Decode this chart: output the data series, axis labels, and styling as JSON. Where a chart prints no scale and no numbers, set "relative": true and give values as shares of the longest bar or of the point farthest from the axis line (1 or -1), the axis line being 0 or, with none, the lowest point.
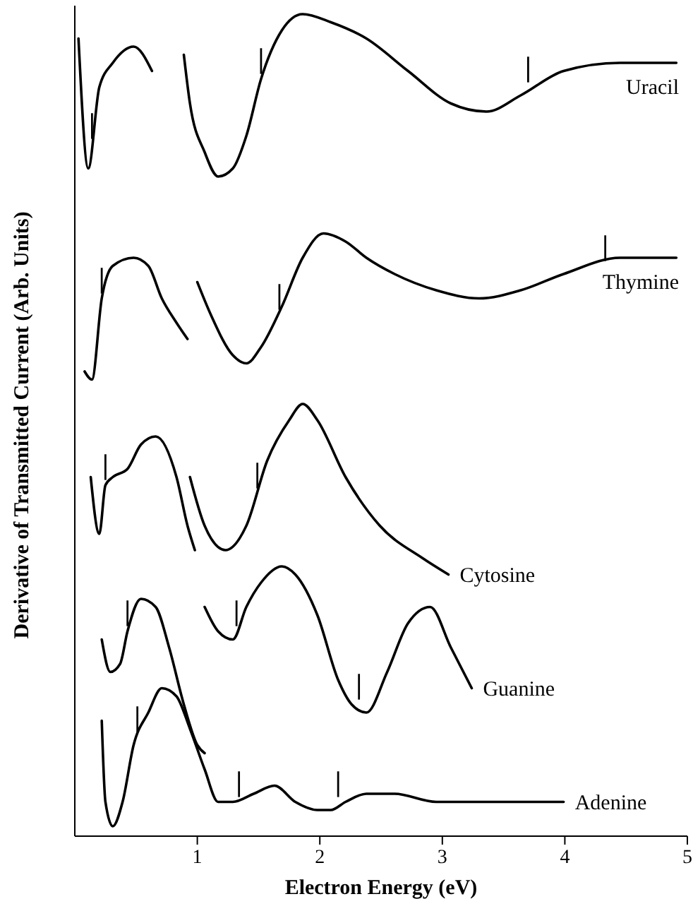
{
  "chart_data": {
    "type": "line",
    "relative": true,
    "xlabel": "Electron Energy (eV)",
    "ylabel": "Derivative of Transmitted Current (Arb. Units)",
    "xlim": [
      0,
      5
    ],
    "xticks": [
      1,
      2,
      3,
      4,
      5
    ],
    "grid": false,
    "legend": false,
    "series": [
      {
        "name": "Uracil",
        "color": "#000000",
        "x": [
          0.03,
          0.11,
          0.2,
          0.31,
          0.48,
          0.63,
          null,
          0.89,
          0.94,
          1.06,
          1.17,
          1.29,
          1.4,
          1.52,
          1.69,
          1.86,
          2.09,
          2.38,
          2.72,
          3.07,
          3.36,
          3.64,
          3.99,
          4.45,
          4.91
        ],
        "values": [
          0.97,
          0.81,
          0.91,
          0.94,
          0.96,
          0.93,
          null,
          0.95,
          0.89,
          0.83,
          0.8,
          0.81,
          0.85,
          0.92,
          0.98,
          1.0,
          0.99,
          0.97,
          0.93,
          0.89,
          0.88,
          0.9,
          0.93,
          0.94,
          0.94
        ]
      },
      {
        "name": "Thymine",
        "color": "#000000",
        "x": [
          0.08,
          0.14,
          0.22,
          0.31,
          0.48,
          0.6,
          0.71,
          0.83,
          0.92,
          null,
          1.0,
          1.11,
          1.29,
          1.4,
          1.52,
          1.69,
          1.86,
          2.03,
          2.21,
          2.38,
          2.61,
          2.95,
          3.3,
          3.64,
          3.99,
          4.45,
          4.91
        ],
        "values": [
          0.56,
          0.55,
          0.65,
          0.69,
          0.7,
          0.69,
          0.65,
          0.62,
          0.6,
          null,
          0.67,
          0.63,
          0.58,
          0.57,
          0.59,
          0.64,
          0.7,
          0.73,
          0.72,
          0.7,
          0.68,
          0.66,
          0.65,
          0.66,
          0.68,
          0.7,
          0.7
        ]
      },
      {
        "name": "Cytosine",
        "color": "#000000",
        "x": [
          0.13,
          0.2,
          0.25,
          0.31,
          0.43,
          0.54,
          0.66,
          0.83,
          0.92,
          0.98,
          null,
          0.94,
          1.06,
          1.23,
          1.4,
          1.57,
          1.75,
          1.86,
          1.98,
          2.21,
          2.49,
          2.84,
          3.05
        ],
        "values": [
          0.43,
          0.36,
          0.42,
          0.43,
          0.44,
          0.47,
          0.48,
          0.43,
          0.37,
          0.34,
          null,
          0.43,
          0.37,
          0.34,
          0.37,
          0.45,
          0.5,
          0.52,
          0.5,
          0.43,
          0.37,
          0.33,
          0.31
        ]
      },
      {
        "name": "Guanine",
        "color": "#000000",
        "x": [
          0.22,
          0.29,
          0.37,
          0.43,
          0.54,
          0.66,
          0.77,
          0.89,
          1.0,
          1.06,
          null,
          1.06,
          1.17,
          1.29,
          1.4,
          1.52,
          1.69,
          1.8,
          1.98,
          2.15,
          2.26,
          2.38,
          2.55,
          2.72,
          2.9,
          3.07,
          3.24
        ],
        "values": [
          0.23,
          0.19,
          0.2,
          0.24,
          0.28,
          0.27,
          0.22,
          0.15,
          0.1,
          0.09,
          null,
          0.27,
          0.24,
          0.23,
          0.27,
          0.3,
          0.32,
          0.31,
          0.26,
          0.18,
          0.15,
          0.14,
          0.19,
          0.25,
          0.27,
          0.22,
          0.17
        ]
      },
      {
        "name": "Adenine",
        "color": "#000000",
        "x": [
          0.22,
          0.25,
          0.31,
          0.39,
          0.48,
          0.6,
          0.71,
          0.83,
          0.94,
          1.06,
          1.17,
          1.29,
          1.46,
          1.63,
          1.8,
          1.98,
          2.09,
          2.21,
          2.38,
          2.61,
          2.95,
          3.41,
          3.99
        ],
        "values": [
          0.13,
          0.03,
          0.0,
          0.03,
          0.1,
          0.14,
          0.17,
          0.16,
          0.12,
          0.07,
          0.03,
          0.03,
          0.04,
          0.05,
          0.03,
          0.02,
          0.02,
          0.03,
          0.04,
          0.04,
          0.03,
          0.03,
          0.03
        ]
      }
    ],
    "annotations": [
      {
        "text": "|",
        "x": 0.14,
        "y": 0.84
      },
      {
        "text": "|",
        "x": 1.52,
        "y": 0.92
      },
      {
        "text": "|",
        "x": 3.7,
        "y": 0.91
      },
      {
        "text": "|",
        "x": 0.22,
        "y": 0.65
      },
      {
        "text": "|",
        "x": 1.67,
        "y": 0.63
      },
      {
        "text": "|",
        "x": 4.33,
        "y": 0.69
      },
      {
        "text": "|",
        "x": 0.25,
        "y": 0.42
      },
      {
        "text": "|",
        "x": 1.49,
        "y": 0.41
      },
      {
        "text": "|",
        "x": 0.43,
        "y": 0.24
      },
      {
        "text": "|",
        "x": 1.32,
        "y": 0.24
      },
      {
        "text": "|",
        "x": 2.32,
        "y": 0.15
      },
      {
        "text": "|",
        "x": 0.51,
        "y": 0.11
      },
      {
        "text": "|",
        "x": 1.34,
        "y": 0.03
      },
      {
        "text": "|",
        "x": 2.15,
        "y": 0.03
      }
    ]
  }
}
